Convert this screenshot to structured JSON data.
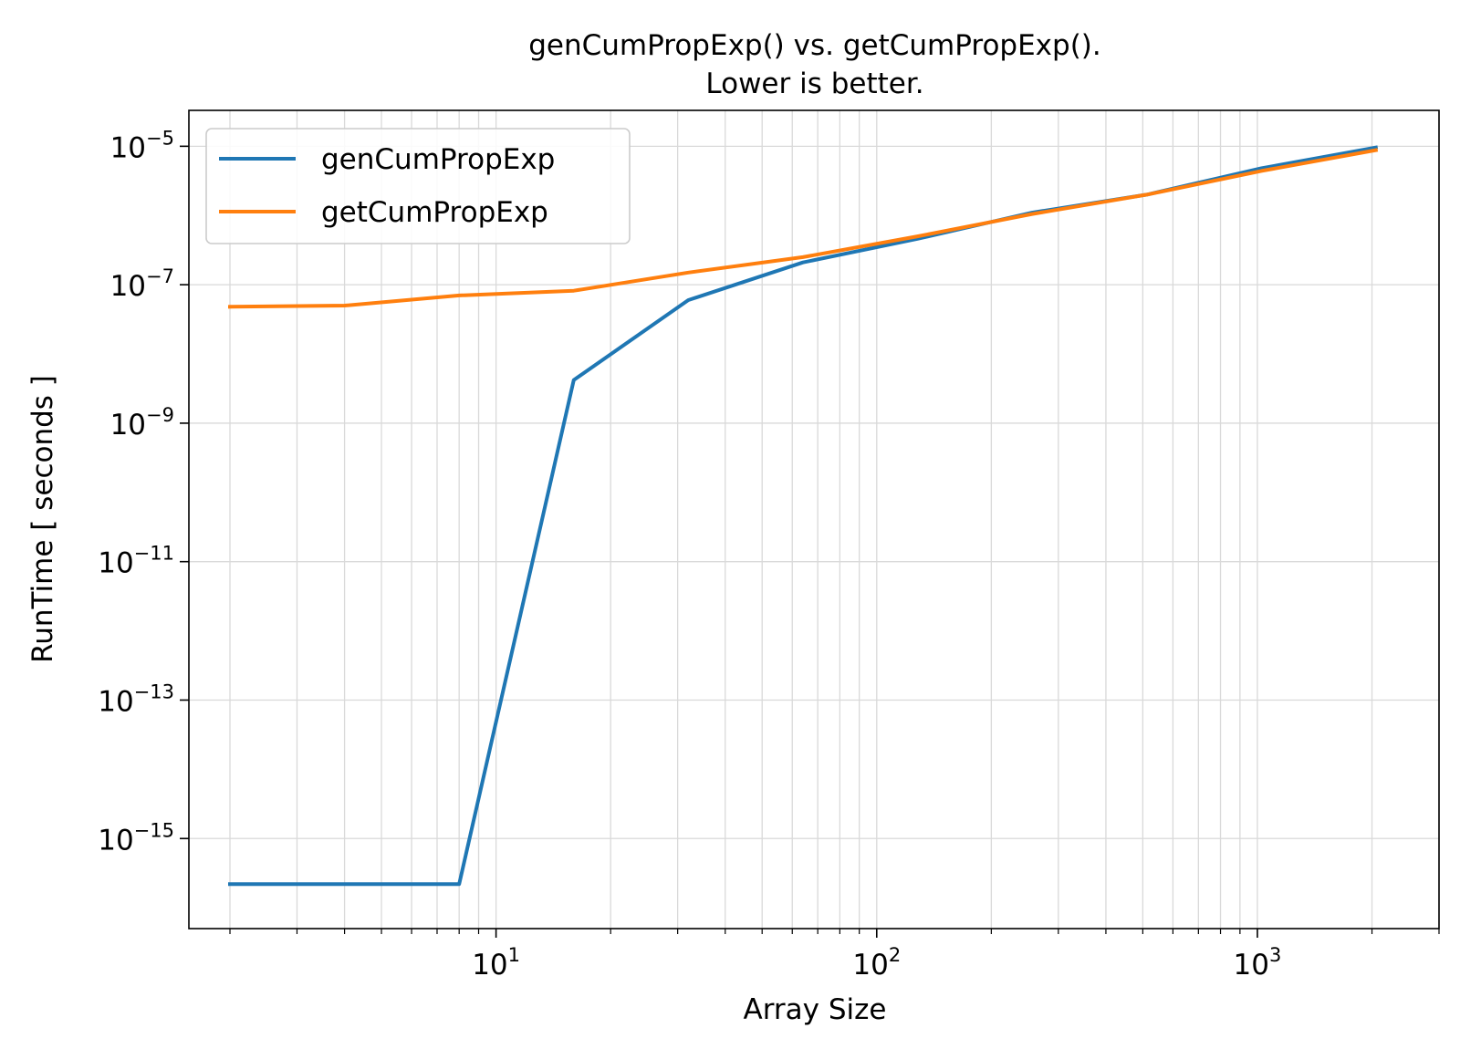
{
  "chart_data": {
    "type": "line",
    "title": "genCumPropExp() vs. getCumPropExp().",
    "subtitle": "Lower is better.",
    "xlabel": "Array Size",
    "ylabel": "RunTime [ seconds ]",
    "xscale": "log",
    "yscale": "log",
    "xlim": [
      1.56,
      3000
    ],
    "ylim": [
      5e-17,
      3.3e-05
    ],
    "xticks": [
      {
        "value": 10,
        "base": "10",
        "exp": "1"
      },
      {
        "value": 100,
        "base": "10",
        "exp": "2"
      },
      {
        "value": 1000,
        "base": "10",
        "exp": "3"
      }
    ],
    "yticks": [
      {
        "value": 1e-15,
        "base": "10",
        "exp": "−15"
      },
      {
        "value": 1e-13,
        "base": "10",
        "exp": "−13"
      },
      {
        "value": 1e-11,
        "base": "10",
        "exp": "−11"
      },
      {
        "value": 1e-09,
        "base": "10",
        "exp": "−9"
      },
      {
        "value": 1e-07,
        "base": "10",
        "exp": "−7"
      },
      {
        "value": 1e-05,
        "base": "10",
        "exp": "−5"
      }
    ],
    "grid": true,
    "legend_position": "upper left",
    "series": [
      {
        "name": "genCumPropExp",
        "color": "#1f77b4",
        "x": [
          2,
          4,
          8,
          16,
          32,
          64,
          128,
          256,
          512,
          1024,
          2048
        ],
        "y": [
          2.2e-16,
          2.2e-16,
          2.2e-16,
          4.2e-09,
          6e-08,
          2.1e-07,
          4.6e-07,
          1.1e-06,
          2e-06,
          4.8e-06,
          9.6e-06
        ]
      },
      {
        "name": "getCumPropExp",
        "color": "#ff7f0e",
        "x": [
          2,
          4,
          8,
          16,
          32,
          64,
          128,
          256,
          512,
          1024,
          2048
        ],
        "y": [
          4.8e-08,
          5e-08,
          7e-08,
          8.2e-08,
          1.5e-07,
          2.5e-07,
          5e-07,
          1.05e-06,
          2e-06,
          4.4e-06,
          8.8e-06
        ]
      }
    ]
  }
}
